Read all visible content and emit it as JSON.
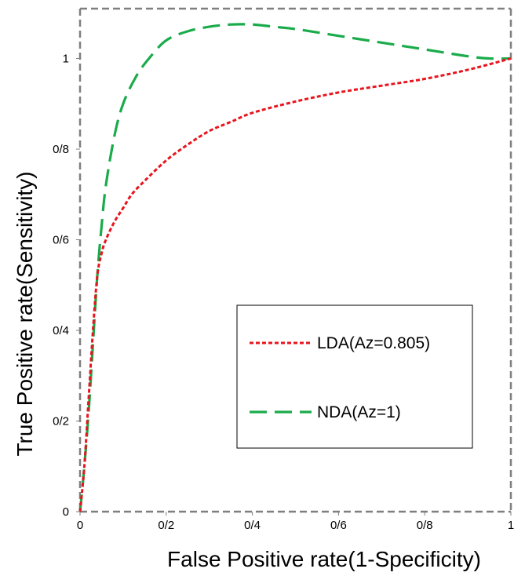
{
  "chart_data": {
    "type": "line",
    "title": "",
    "xlabel": "False Positive rate(1-Specificity)",
    "ylabel": "True Positive rate(Sensitivity)",
    "xlim": [
      0,
      1
    ],
    "ylim": [
      0,
      1.11
    ],
    "x_ticks": [
      {
        "value": 0,
        "label": "0"
      },
      {
        "value": 0.2,
        "label": "0/2"
      },
      {
        "value": 0.4,
        "label": "0/4"
      },
      {
        "value": 0.6,
        "label": "0/6"
      },
      {
        "value": 0.8,
        "label": "0/8"
      },
      {
        "value": 1,
        "label": "1"
      }
    ],
    "y_ticks": [
      {
        "value": 0,
        "label": "0"
      },
      {
        "value": 0.2,
        "label": "0/2"
      },
      {
        "value": 0.4,
        "label": "0/4"
      },
      {
        "value": 0.6,
        "label": "0/6"
      },
      {
        "value": 0.8,
        "label": "0/8"
      },
      {
        "value": 1,
        "label": "1"
      }
    ],
    "grid": false,
    "legend_position": "bottom-right",
    "series": [
      {
        "name": "LDA(Az=0.805)",
        "color": "#e8141e",
        "style": "dotted",
        "x": [
          0,
          0.01,
          0.02,
          0.03,
          0.04,
          0.05,
          0.06,
          0.08,
          0.1,
          0.12,
          0.15,
          0.2,
          0.25,
          0.3,
          0.35,
          0.4,
          0.5,
          0.6,
          0.7,
          0.8,
          0.9,
          1.0
        ],
        "y": [
          0,
          0.1,
          0.25,
          0.4,
          0.52,
          0.57,
          0.6,
          0.64,
          0.67,
          0.7,
          0.73,
          0.775,
          0.81,
          0.84,
          0.86,
          0.88,
          0.905,
          0.925,
          0.94,
          0.955,
          0.975,
          1.0
        ]
      },
      {
        "name": "NDA(Az=1)",
        "color": "#1aab4b",
        "style": "dashed",
        "x": [
          0,
          0.01,
          0.02,
          0.03,
          0.04,
          0.05,
          0.06,
          0.08,
          0.1,
          0.13,
          0.16,
          0.2,
          0.25,
          0.3,
          0.35,
          0.4,
          0.45,
          0.5,
          0.6,
          0.7,
          0.8,
          0.9,
          0.95,
          1.0
        ],
        "y": [
          0,
          0.1,
          0.22,
          0.37,
          0.52,
          0.63,
          0.72,
          0.83,
          0.9,
          0.96,
          1.0,
          1.04,
          1.06,
          1.07,
          1.075,
          1.075,
          1.07,
          1.065,
          1.05,
          1.035,
          1.02,
          1.005,
          1.0,
          1.0
        ]
      }
    ]
  }
}
